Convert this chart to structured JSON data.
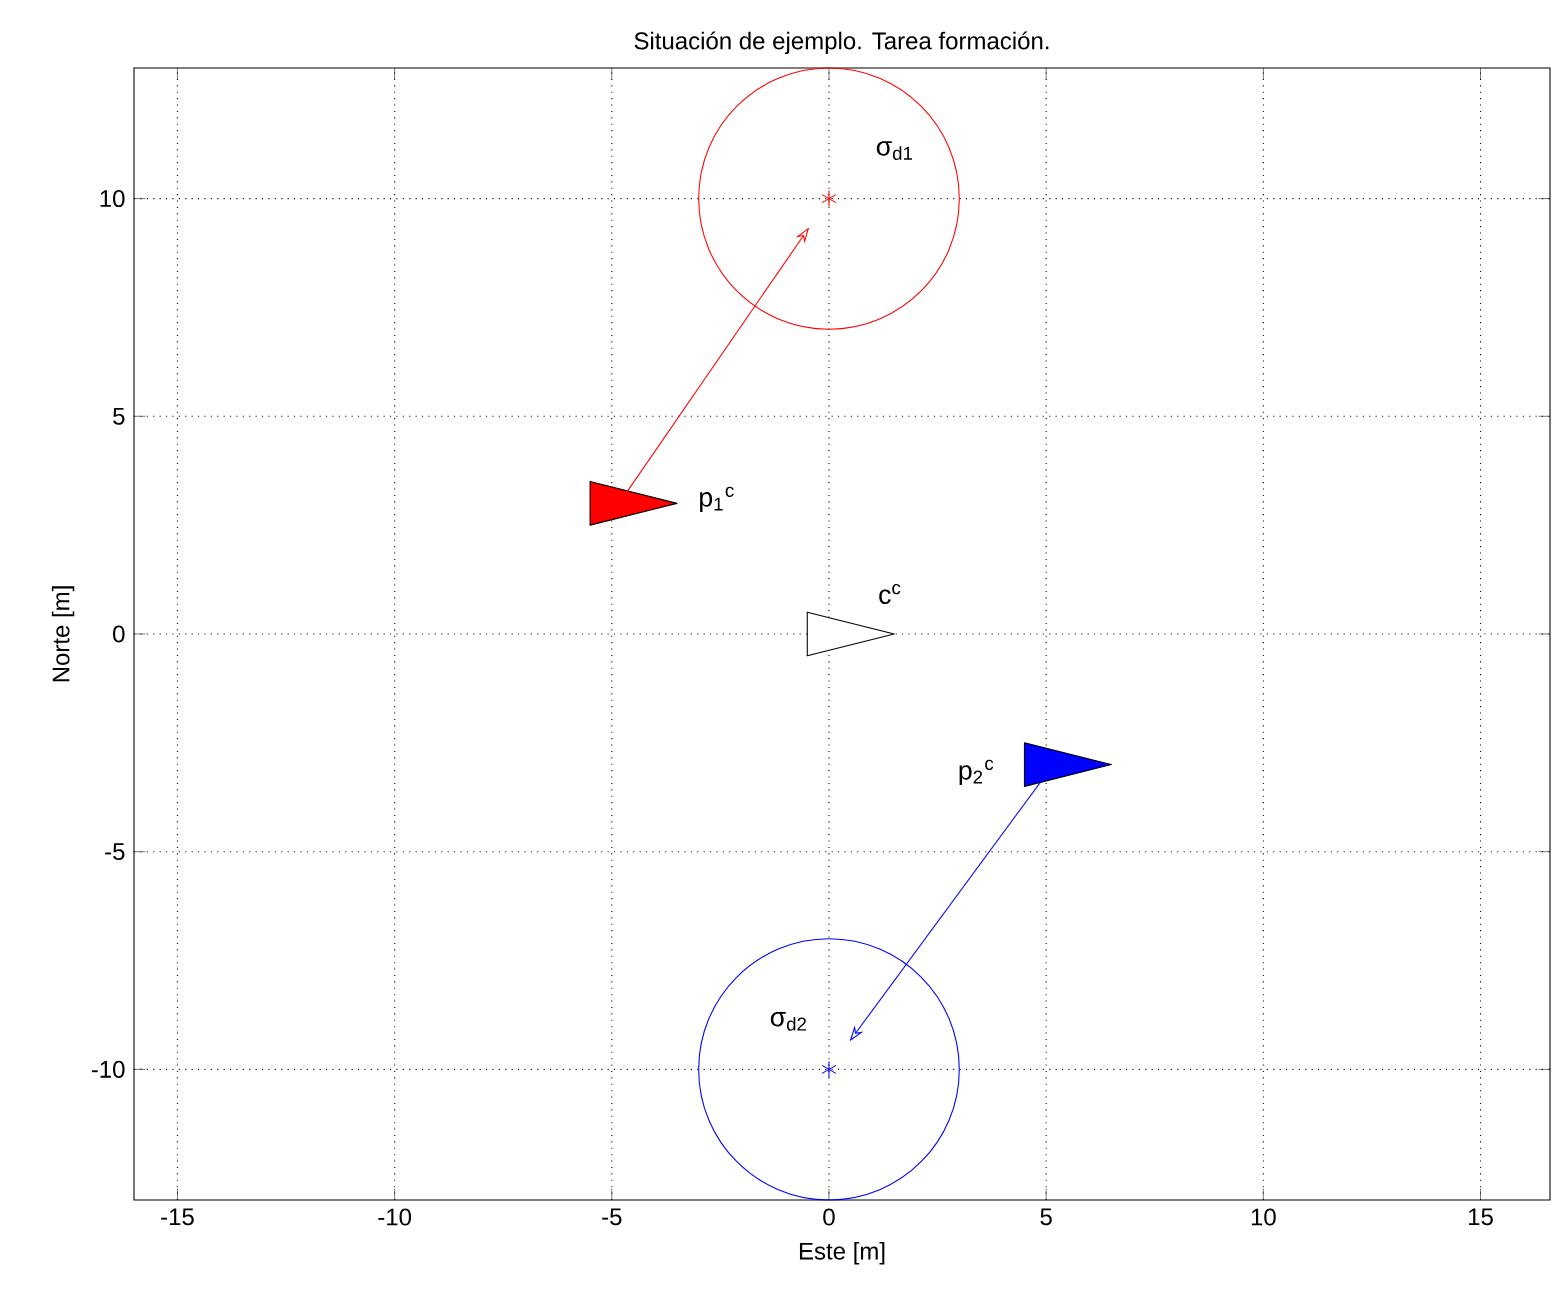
{
  "chart_data": {
    "type": "scatter",
    "title": "Situación de ejemplo. Tarea formación.",
    "xlabel": "Este [m]",
    "ylabel": "Norte [m]",
    "xlim": [
      -16,
      16.6
    ],
    "ylim": [
      -13,
      13
    ],
    "xticks": [
      -15,
      -10,
      -5,
      0,
      5,
      10,
      15
    ],
    "yticks": [
      -10,
      -5,
      0,
      5,
      10
    ],
    "grid": true,
    "series": [
      {
        "color": "#ff0000",
        "marker": "cross",
        "x": [
          0
        ],
        "values": [
          10
        ]
      },
      {
        "color": "#0000ff",
        "marker": "cross",
        "x": [
          0
        ],
        "values": [
          -10
        ]
      },
      {
        "type": "area",
        "color": "#ff0000",
        "x": [
          -5.5,
          -5.5,
          -3.5
        ],
        "values": [
          3.5,
          2.5,
          3
        ]
      },
      {
        "type": "area",
        "color": "#ffffff",
        "x": [
          -0.5,
          -0.5,
          1.5
        ],
        "values": [
          0.5,
          -0.5,
          0
        ]
      },
      {
        "type": "area",
        "color": "#0000ff",
        "x": [
          4.5,
          4.5,
          6.5
        ],
        "values": [
          -2.5,
          -3.5,
          -3
        ]
      }
    ],
    "annotations": [
      {
        "text": "σ$_{d1}$",
        "x": 0,
        "y": 10
      },
      {
        "text": "p$_{1}$$^{c}$",
        "x": -3.5,
        "y": 3
      },
      {
        "text": "c$^{c}$",
        "x": 1.5,
        "y": 0
      },
      {
        "text": "p$_{2}$$^{c}$",
        "x": 4.5,
        "y": -3.5
      },
      {
        "text": "σ$_{d2}$",
        "x": 0,
        "y": -10
      }
    ]
  }
}
